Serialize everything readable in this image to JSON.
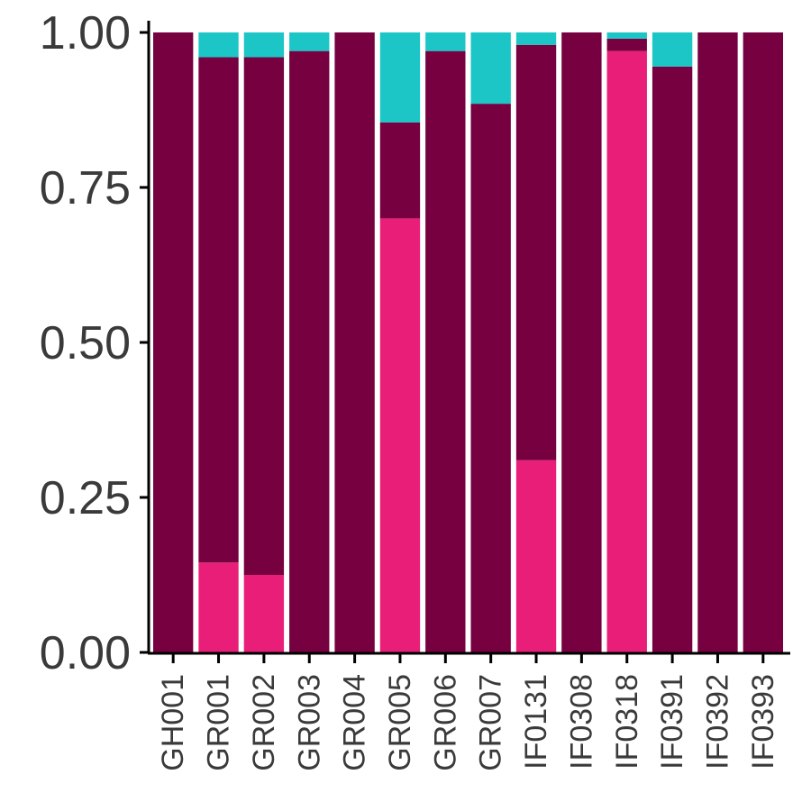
{
  "chart_data": {
    "type": "bar",
    "stacked": true,
    "title": "",
    "xlabel": "",
    "ylabel": "",
    "ylim": [
      0,
      1
    ],
    "yticks": [
      "0.00",
      "0.25",
      "0.50",
      "0.75",
      "1.00"
    ],
    "ytick_values": [
      0,
      0.25,
      0.5,
      0.75,
      1.0
    ],
    "grid": false,
    "legend": "none",
    "categories": [
      "GH001",
      "GR001",
      "GR002",
      "GR003",
      "GR004",
      "GR005",
      "GR006",
      "GR007",
      "IF0131",
      "IF0308",
      "IF0318",
      "IF0391",
      "IF0392",
      "IF0393"
    ],
    "series": [
      {
        "color": "#e91e78",
        "values": [
          0,
          0.145,
          0.125,
          0,
          0,
          0.7,
          0,
          0,
          0.31,
          0,
          0.97,
          0,
          0,
          0
        ]
      },
      {
        "color": "#760040",
        "values": [
          1.0,
          0.815,
          0.835,
          0.97,
          1.0,
          0.155,
          0.97,
          0.885,
          0.67,
          1.0,
          0.02,
          0.945,
          1.0,
          1.0
        ]
      },
      {
        "color": "#1cc6c6",
        "values": [
          0,
          0.04,
          0.04,
          0.03,
          0,
          0.145,
          0.03,
          0.115,
          0.02,
          0,
          0.01,
          0.055,
          0,
          0
        ]
      }
    ]
  }
}
